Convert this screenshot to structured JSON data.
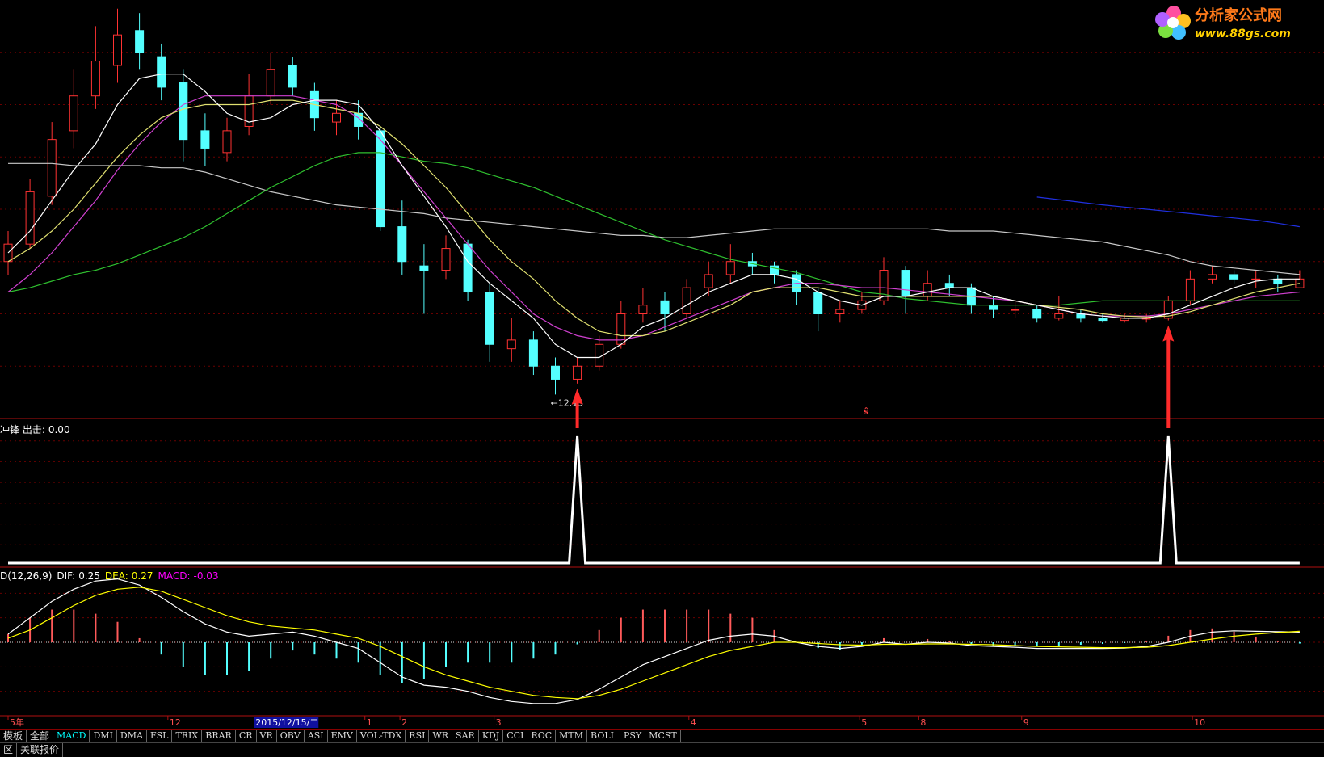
{
  "logo": {
    "title": "分析家公式网",
    "url": "www.88gs.com"
  },
  "chart_data": [
    {
      "type": "candlestick",
      "ylim": [
        11.6,
        21.2
      ],
      "up_color": "#ff3232",
      "down_color": "#54ffff",
      "candles": [
        [
          15.2,
          15.9,
          14.9,
          15.6
        ],
        [
          15.6,
          17.1,
          15.5,
          16.8
        ],
        [
          16.7,
          18.4,
          16.5,
          18.0
        ],
        [
          18.2,
          19.6,
          17.8,
          19.0
        ],
        [
          19.0,
          20.6,
          18.7,
          19.8
        ],
        [
          19.7,
          21.0,
          19.3,
          20.4
        ],
        [
          20.5,
          20.9,
          19.6,
          20.0
        ],
        [
          19.9,
          20.2,
          18.9,
          19.2
        ],
        [
          19.3,
          19.6,
          17.5,
          18.0
        ],
        [
          18.2,
          18.6,
          17.4,
          17.8
        ],
        [
          17.7,
          18.5,
          17.5,
          18.2
        ],
        [
          18.3,
          19.5,
          18.1,
          19.0
        ],
        [
          19.0,
          20.0,
          18.8,
          19.6
        ],
        [
          19.7,
          19.9,
          19.0,
          19.2
        ],
        [
          19.1,
          19.3,
          18.2,
          18.5
        ],
        [
          18.4,
          18.9,
          18.1,
          18.6
        ],
        [
          18.6,
          18.9,
          18.0,
          18.3
        ],
        [
          18.2,
          18.3,
          15.9,
          16.0
        ],
        [
          16.0,
          16.6,
          14.9,
          15.2
        ],
        [
          15.1,
          15.6,
          14.0,
          15.0
        ],
        [
          15.0,
          15.8,
          14.8,
          15.5
        ],
        [
          15.6,
          15.7,
          14.3,
          14.5
        ],
        [
          14.5,
          14.7,
          12.9,
          13.3
        ],
        [
          13.2,
          13.9,
          12.9,
          13.4
        ],
        [
          13.4,
          13.6,
          12.6,
          12.8
        ],
        [
          12.8,
          13.0,
          12.15,
          12.5
        ],
        [
          12.5,
          13.0,
          12.4,
          12.8
        ],
        [
          12.8,
          13.5,
          12.7,
          13.3
        ],
        [
          13.3,
          14.3,
          13.2,
          14.0
        ],
        [
          14.0,
          14.6,
          13.8,
          14.2
        ],
        [
          14.3,
          14.5,
          13.6,
          14.0
        ],
        [
          14.0,
          14.8,
          13.9,
          14.6
        ],
        [
          14.6,
          15.2,
          14.4,
          14.9
        ],
        [
          14.9,
          15.6,
          14.7,
          15.2
        ],
        [
          15.2,
          15.4,
          14.9,
          15.1
        ],
        [
          15.1,
          15.2,
          14.7,
          14.9
        ],
        [
          14.9,
          15.0,
          14.2,
          14.5
        ],
        [
          14.5,
          14.6,
          13.6,
          14.0
        ],
        [
          14.0,
          14.3,
          13.8,
          14.1
        ],
        [
          14.1,
          14.5,
          14.0,
          14.3
        ],
        [
          14.3,
          15.3,
          14.2,
          15.0
        ],
        [
          15.0,
          15.1,
          14.0,
          14.4
        ],
        [
          14.4,
          15.0,
          14.3,
          14.7
        ],
        [
          14.7,
          14.9,
          14.4,
          14.6
        ],
        [
          14.6,
          14.7,
          14.0,
          14.2
        ],
        [
          14.2,
          14.4,
          13.9,
          14.1
        ],
        [
          14.1,
          14.3,
          13.9,
          14.1
        ],
        [
          14.1,
          14.2,
          13.8,
          13.9
        ],
        [
          13.9,
          14.4,
          13.85,
          14.0
        ],
        [
          14.0,
          14.1,
          13.8,
          13.9
        ],
        [
          13.9,
          14.0,
          13.8,
          13.85
        ],
        [
          13.85,
          14.0,
          13.8,
          13.9
        ],
        [
          13.9,
          14.0,
          13.8,
          13.9
        ],
        [
          13.9,
          14.4,
          13.85,
          14.3
        ],
        [
          14.3,
          15.0,
          14.2,
          14.8
        ],
        [
          14.8,
          15.1,
          14.7,
          14.9
        ],
        [
          14.9,
          15.0,
          14.7,
          14.8
        ],
        [
          14.8,
          15.0,
          14.6,
          14.8
        ],
        [
          14.8,
          14.9,
          14.5,
          14.7
        ],
        [
          14.6,
          15.0,
          14.6,
          14.8
        ]
      ],
      "lines": [
        {
          "color": "#c8c8c8",
          "values": [
            17.45,
            17.45,
            17.45,
            17.4,
            17.4,
            17.4,
            17.4,
            17.35,
            17.35,
            17.25,
            17.1,
            16.95,
            16.8,
            16.7,
            16.6,
            16.5,
            16.45,
            16.4,
            16.35,
            16.3,
            16.2,
            16.15,
            16.1,
            16.05,
            16.0,
            15.95,
            15.9,
            15.85,
            15.8,
            15.8,
            15.75,
            15.75,
            15.8,
            15.85,
            15.9,
            15.95,
            15.95,
            15.95,
            15.95,
            15.95,
            15.95,
            15.95,
            15.95,
            15.9,
            15.9,
            15.9,
            15.85,
            15.8,
            15.75,
            15.7,
            15.65,
            15.55,
            15.45,
            15.35,
            15.2,
            15.1,
            15.05,
            15.0,
            14.95,
            14.9
          ]
        },
        {
          "color": "#2fc02f",
          "values": [
            14.5,
            14.6,
            14.75,
            14.9,
            15.0,
            15.15,
            15.35,
            15.55,
            15.75,
            16.0,
            16.3,
            16.6,
            16.9,
            17.15,
            17.4,
            17.6,
            17.7,
            17.7,
            17.6,
            17.5,
            17.45,
            17.35,
            17.2,
            17.05,
            16.9,
            16.7,
            16.5,
            16.3,
            16.1,
            15.9,
            15.7,
            15.55,
            15.4,
            15.25,
            15.15,
            15.05,
            14.95,
            14.8,
            14.65,
            14.5,
            14.45,
            14.35,
            14.3,
            14.25,
            14.2,
            14.2,
            14.2,
            14.2,
            14.2,
            14.25,
            14.3,
            14.3,
            14.3,
            14.3,
            14.3,
            14.3,
            14.3,
            14.3,
            14.3,
            14.3
          ]
        },
        {
          "color": "#d040d0",
          "values": [
            14.5,
            14.9,
            15.4,
            16.0,
            16.6,
            17.3,
            17.9,
            18.4,
            18.8,
            19.0,
            19.0,
            19.0,
            19.0,
            19.0,
            18.9,
            18.8,
            18.5,
            18.0,
            17.4,
            16.8,
            16.2,
            15.6,
            15.0,
            14.5,
            14.0,
            13.7,
            13.5,
            13.4,
            13.4,
            13.5,
            13.7,
            13.9,
            14.1,
            14.3,
            14.5,
            14.6,
            14.7,
            14.7,
            14.65,
            14.6,
            14.6,
            14.55,
            14.5,
            14.45,
            14.4,
            14.35,
            14.3,
            14.2,
            14.1,
            14.0,
            13.95,
            13.95,
            13.95,
            14.0,
            14.1,
            14.2,
            14.3,
            14.4,
            14.45,
            14.5
          ]
        },
        {
          "color": "#e0e070",
          "values": [
            15.2,
            15.5,
            15.9,
            16.4,
            17.0,
            17.6,
            18.1,
            18.5,
            18.7,
            18.8,
            18.8,
            18.8,
            18.9,
            18.9,
            18.8,
            18.7,
            18.6,
            18.3,
            17.9,
            17.4,
            16.9,
            16.3,
            15.7,
            15.2,
            14.8,
            14.3,
            13.9,
            13.6,
            13.5,
            13.5,
            13.6,
            13.8,
            14.0,
            14.2,
            14.5,
            14.6,
            14.6,
            14.6,
            14.5,
            14.4,
            14.4,
            14.4,
            14.4,
            14.4,
            14.4,
            14.4,
            14.3,
            14.2,
            14.15,
            14.1,
            14.0,
            13.95,
            13.93,
            13.95,
            14.05,
            14.2,
            14.35,
            14.5,
            14.6,
            14.7
          ]
        },
        {
          "color": "#ffffff",
          "values": [
            15.4,
            15.9,
            16.6,
            17.3,
            17.9,
            18.8,
            19.4,
            19.5,
            19.5,
            19.1,
            18.6,
            18.4,
            18.5,
            18.8,
            18.9,
            18.9,
            18.8,
            18.2,
            17.4,
            16.7,
            16.0,
            15.2,
            14.7,
            14.3,
            13.9,
            13.3,
            13.0,
            13.0,
            13.3,
            13.7,
            13.9,
            14.2,
            14.5,
            14.7,
            14.9,
            14.9,
            14.8,
            14.5,
            14.3,
            14.2,
            14.4,
            14.4,
            14.5,
            14.6,
            14.6,
            14.4,
            14.3,
            14.2,
            14.1,
            14.0,
            13.95,
            13.9,
            13.9,
            14.0,
            14.2,
            14.4,
            14.6,
            14.75,
            14.8,
            14.8
          ]
        },
        {
          "color": "#2030e0",
          "values": [
            null,
            null,
            null,
            null,
            null,
            null,
            null,
            null,
            null,
            null,
            null,
            null,
            null,
            null,
            null,
            null,
            null,
            null,
            null,
            null,
            null,
            null,
            null,
            null,
            null,
            null,
            null,
            null,
            null,
            null,
            null,
            null,
            null,
            null,
            null,
            null,
            null,
            null,
            null,
            null,
            null,
            null,
            null,
            null,
            null,
            null,
            null,
            16.68,
            16.62,
            16.56,
            16.5,
            16.45,
            16.4,
            16.35,
            16.3,
            16.25,
            16.2,
            16.15,
            16.08,
            16.0
          ]
        }
      ],
      "annotations": [
        {
          "x": 25,
          "y": 12.15,
          "text": "←12.15"
        }
      ],
      "marker": {
        "x": 39.2,
        "text": "ŝ"
      }
    },
    {
      "type": "line",
      "title": "冲锋 出击:",
      "value_label": "0.00",
      "color": "#ffffff",
      "arrow_color": "#ff2a2a",
      "ylim": [
        0,
        1
      ],
      "values": [
        0,
        0,
        0,
        0,
        0,
        0,
        0,
        0,
        0,
        0,
        0,
        0,
        0,
        0,
        0,
        0,
        0,
        0,
        0,
        0,
        0,
        0,
        0,
        0,
        0,
        0,
        1,
        0,
        0,
        0,
        0,
        0,
        0,
        0,
        0,
        0,
        0,
        0,
        0,
        0,
        0,
        0,
        0,
        0,
        0,
        0,
        0,
        0,
        0,
        0,
        0,
        0,
        0,
        1,
        0,
        0,
        0,
        0,
        0,
        0
      ]
    },
    {
      "type": "macd",
      "title": "D(12,26,9)",
      "ylim": [
        -1.8,
        1.8
      ],
      "series": [
        {
          "name": "DIF:",
          "value_label": "0.25",
          "color": "#ffffff",
          "values": [
            0.2,
            0.6,
            1.0,
            1.3,
            1.5,
            1.55,
            1.4,
            1.1,
            0.75,
            0.45,
            0.25,
            0.15,
            0.2,
            0.25,
            0.15,
            0.0,
            -0.15,
            -0.5,
            -0.85,
            -1.05,
            -1.1,
            -1.2,
            -1.35,
            -1.45,
            -1.5,
            -1.5,
            -1.4,
            -1.15,
            -0.85,
            -0.55,
            -0.35,
            -0.15,
            0.05,
            0.15,
            0.2,
            0.15,
            0.0,
            -0.1,
            -0.15,
            -0.1,
            0.0,
            -0.05,
            0.0,
            -0.02,
            -0.08,
            -0.1,
            -0.12,
            -0.15,
            -0.15,
            -0.15,
            -0.15,
            -0.14,
            -0.1,
            0.0,
            0.15,
            0.25,
            0.28,
            0.27,
            0.26,
            0.25
          ]
        },
        {
          "name": "DEA:",
          "value_label": "0.27",
          "color": "#ffff00",
          "values": [
            0.1,
            0.3,
            0.6,
            0.9,
            1.15,
            1.3,
            1.35,
            1.25,
            1.05,
            0.85,
            0.65,
            0.5,
            0.4,
            0.35,
            0.3,
            0.2,
            0.1,
            -0.1,
            -0.35,
            -0.6,
            -0.8,
            -0.95,
            -1.1,
            -1.2,
            -1.3,
            -1.35,
            -1.38,
            -1.3,
            -1.15,
            -0.95,
            -0.75,
            -0.55,
            -0.35,
            -0.2,
            -0.1,
            0.0,
            0.0,
            -0.03,
            -0.06,
            -0.07,
            -0.05,
            -0.05,
            -0.04,
            -0.04,
            -0.05,
            -0.06,
            -0.08,
            -0.1,
            -0.11,
            -0.12,
            -0.13,
            -0.13,
            -0.12,
            -0.08,
            0.0,
            0.08,
            0.15,
            0.2,
            0.24,
            0.27
          ]
        },
        {
          "name": "MACD:",
          "value_label": "-0.03",
          "color": "#ff00ff",
          "pos_color": "#ff5a5a",
          "neg_color": "#54ffff",
          "values": [
            0.2,
            0.6,
            0.8,
            0.8,
            0.7,
            0.5,
            0.1,
            -0.3,
            -0.6,
            -0.8,
            -0.8,
            -0.7,
            -0.4,
            -0.2,
            -0.3,
            -0.4,
            -0.5,
            -0.8,
            -1.0,
            -0.9,
            -0.6,
            -0.5,
            -0.5,
            -0.5,
            -0.4,
            -0.3,
            -0.05,
            0.3,
            0.6,
            0.8,
            0.8,
            0.8,
            0.8,
            0.7,
            0.6,
            0.3,
            0.0,
            -0.14,
            -0.18,
            -0.06,
            0.1,
            0.0,
            0.08,
            0.04,
            -0.06,
            -0.08,
            -0.08,
            -0.1,
            -0.08,
            -0.06,
            -0.04,
            -0.02,
            0.04,
            0.16,
            0.3,
            0.34,
            0.26,
            0.14,
            0.04,
            -0.03
          ]
        }
      ]
    }
  ],
  "x_axis": {
    "ticks": [
      {
        "value": 0,
        "label": "5年"
      },
      {
        "value": 7.3,
        "label": "12"
      },
      {
        "value": 16.3,
        "label": "1"
      },
      {
        "value": 17.9,
        "label": "2"
      },
      {
        "value": 22.2,
        "label": "3"
      },
      {
        "value": 31.1,
        "label": "4"
      },
      {
        "value": 38.9,
        "label": "5"
      },
      {
        "value": 41.6,
        "label": "8"
      },
      {
        "value": 46.3,
        "label": "9"
      },
      {
        "value": 54.1,
        "label": "10"
      }
    ],
    "cursor": {
      "value": 11.3,
      "label": "2015/12/15/二"
    }
  },
  "tabs": {
    "items": [
      "模板",
      "全部",
      "MACD",
      "DMI",
      "DMA",
      "FSL",
      "TRIX",
      "BRAR",
      "CR",
      "VR",
      "OBV",
      "ASI",
      "EMV",
      "VOL-TDX",
      "RSI",
      "WR",
      "SAR",
      "KDJ",
      "CCI",
      "ROC",
      "MTM",
      "BOLL",
      "PSY",
      "MCST"
    ],
    "active": 2
  },
  "footer": [
    "区",
    "关联报价"
  ]
}
